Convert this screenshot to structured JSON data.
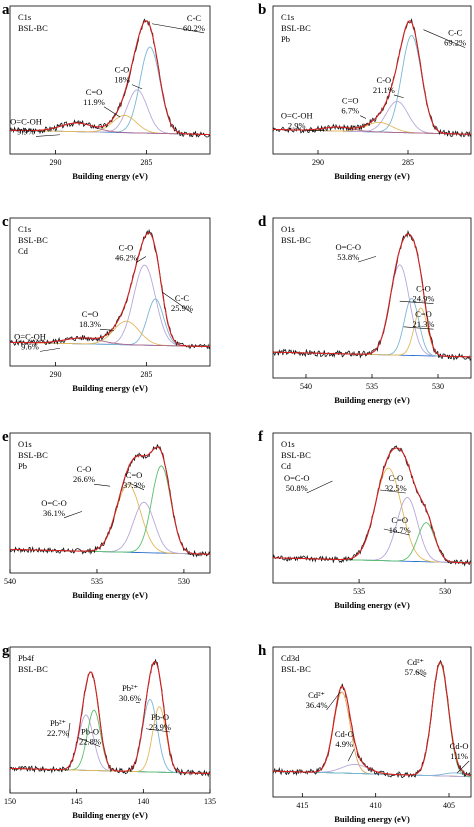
{
  "chart_data": [
    {
      "type": "line",
      "panel_letter": "a",
      "title_lines": [
        "C1s",
        "BSL-BC"
      ],
      "xlabel": "Building energy (eV)",
      "ylabel": "",
      "xlim": [
        292.5,
        281.5
      ],
      "xticks": [
        290,
        285
      ],
      "peaks": [
        {
          "label": "C-C",
          "percent": "60.2%",
          "center": 284.8,
          "amp": 1.0,
          "width": 0.55,
          "color": "#7ab6d6"
        },
        {
          "label": "C-O",
          "percent": "18%",
          "center": 285.5,
          "amp": 0.5,
          "width": 0.55,
          "color": "#b7a8d9"
        },
        {
          "label": "C=O",
          "percent": "11.9%",
          "center": 286.2,
          "amp": 0.2,
          "width": 0.65,
          "color": "#e2b85a"
        },
        {
          "label": "O=C-OH",
          "percent": "9.9%",
          "center": 288.8,
          "amp": 0.1,
          "width": 0.9,
          "color": "#b06a8e"
        }
      ],
      "annotations": [
        {
          "lines": [
            "C-C",
            "60.2%"
          ]
        },
        {
          "lines": [
            "C-O",
            "18%"
          ]
        },
        {
          "lines": [
            "C=O",
            "11.9%"
          ]
        },
        {
          "lines": [
            "O=C-OH",
            "9.9%"
          ]
        }
      ]
    },
    {
      "type": "line",
      "panel_letter": "b",
      "title_lines": [
        "C1s",
        "BSL-BC",
        "Pb"
      ],
      "xlabel": "Building energy (eV)",
      "ylabel": "",
      "xlim": [
        292.5,
        281.5
      ],
      "xticks": [
        290,
        285
      ],
      "peaks": [
        {
          "label": "C-C",
          "percent": "69.2%",
          "center": 284.8,
          "amp": 1.0,
          "width": 0.55,
          "color": "#7ab6d6"
        },
        {
          "label": "C-O",
          "percent": "21.1%",
          "center": 285.6,
          "amp": 0.32,
          "width": 0.6,
          "color": "#b7a8d9"
        },
        {
          "label": "C=O",
          "percent": "6.7%",
          "center": 286.6,
          "amp": 0.1,
          "width": 0.7,
          "color": "#e2b85a"
        },
        {
          "label": "O=C-OH",
          "percent": "2.9%",
          "center": 288.9,
          "amp": 0.04,
          "width": 0.8,
          "color": "#b06a8e"
        }
      ],
      "annotations": [
        {
          "lines": [
            "C-C",
            "69.2%"
          ]
        },
        {
          "lines": [
            "C-O",
            "21.1%"
          ]
        },
        {
          "lines": [
            "C=O",
            "6.7%"
          ]
        },
        {
          "lines": [
            "O=C-OH",
            "2.9%"
          ]
        }
      ]
    },
    {
      "type": "line",
      "panel_letter": "c",
      "title_lines": [
        "C1s",
        "BSL-BC",
        "Cd"
      ],
      "xlabel": "Building energy (eV)",
      "ylabel": "",
      "xlim": [
        292.5,
        281.5
      ],
      "xticks": [
        290,
        285
      ],
      "peaks": [
        {
          "label": "C-O",
          "percent": "46.2%",
          "center": 285.1,
          "amp": 0.95,
          "width": 0.6,
          "color": "#b7a8d9"
        },
        {
          "label": "C-C",
          "percent": "25.9%",
          "center": 284.5,
          "amp": 0.55,
          "width": 0.45,
          "color": "#7ab6d6"
        },
        {
          "label": "C=O",
          "percent": "18.3%",
          "center": 286.1,
          "amp": 0.28,
          "width": 0.7,
          "color": "#e2b85a"
        },
        {
          "label": "O=C-OH",
          "percent": "9.6%",
          "center": 288.5,
          "amp": 0.07,
          "width": 1.0,
          "color": "#b06a8e"
        }
      ],
      "annotations": [
        {
          "lines": [
            "C-O",
            "46.2%"
          ]
        },
        {
          "lines": [
            "C-C",
            "25.9%"
          ]
        },
        {
          "lines": [
            "C=O",
            "18.3%"
          ]
        },
        {
          "lines": [
            "O=C-OH",
            "9.6%"
          ]
        }
      ]
    },
    {
      "type": "line",
      "panel_letter": "d",
      "title_lines": [
        "O1s",
        "BSL-BC"
      ],
      "xlabel": "Building energy (eV)",
      "ylabel": "",
      "xlim": [
        542.5,
        527.5
      ],
      "xticks": [
        540,
        535,
        530
      ],
      "peaks": [
        {
          "label": "O=C-O",
          "percent": "53.8%",
          "center": 532.9,
          "amp": 0.95,
          "width": 0.75,
          "color": "#b7a8d9"
        },
        {
          "label": "C-O",
          "percent": "24.9%",
          "center": 532.0,
          "amp": 0.6,
          "width": 0.55,
          "color": "#7ab6d6"
        },
        {
          "label": "C=O",
          "percent": "21.3%",
          "center": 531.3,
          "amp": 0.5,
          "width": 0.5,
          "color": "#e2b85a"
        }
      ],
      "annotations": [
        {
          "lines": [
            "O=C-O",
            "53.8%"
          ]
        },
        {
          "lines": [
            "C-O",
            "24.9%"
          ]
        },
        {
          "lines": [
            "C=O",
            "21.3%"
          ]
        }
      ]
    },
    {
      "type": "line",
      "panel_letter": "e",
      "title_lines": [
        "O1s",
        "BSL-BC",
        "Pb"
      ],
      "xlabel": "Building energy (eV)",
      "ylabel": "",
      "xlim": [
        540,
        528.5
      ],
      "xticks": [
        540,
        535,
        530
      ],
      "peaks": [
        {
          "label": "O=C-O",
          "percent": "36.1%",
          "center": 533.2,
          "amp": 0.7,
          "width": 0.7,
          "color": "#e2b85a"
        },
        {
          "label": "C-O",
          "percent": "26.6%",
          "center": 532.3,
          "amp": 0.52,
          "width": 0.6,
          "color": "#b7a8d9"
        },
        {
          "label": "C=O",
          "percent": "37.3%",
          "center": 531.3,
          "amp": 0.9,
          "width": 0.55,
          "color": "#5cbf6e"
        }
      ],
      "annotations": [
        {
          "lines": [
            "C-O",
            "26.6%"
          ]
        },
        {
          "lines": [
            "O=C-O",
            "36.1%"
          ]
        },
        {
          "lines": [
            "C=O",
            "37.3%"
          ]
        }
      ]
    },
    {
      "type": "line",
      "panel_letter": "f",
      "title_lines": [
        "O1s",
        "BSL-BC",
        "Cd"
      ],
      "xlabel": "Building energy (eV)",
      "ylabel": "",
      "xlim": [
        540,
        528.5
      ],
      "xticks": [
        535,
        530
      ],
      "peaks": [
        {
          "label": "O=C-O",
          "percent": "50.8%",
          "center": 533.3,
          "amp": 0.9,
          "width": 0.75,
          "color": "#e2b85a"
        },
        {
          "label": "C-O",
          "percent": "32.5%",
          "center": 532.2,
          "amp": 0.62,
          "width": 0.6,
          "color": "#b7a8d9"
        },
        {
          "label": "C=O",
          "percent": "16.7%",
          "center": 531.1,
          "amp": 0.38,
          "width": 0.5,
          "color": "#5cbf6e"
        }
      ],
      "annotations": [
        {
          "lines": [
            "O=C-O",
            "50.8%"
          ]
        },
        {
          "lines": [
            "C-O",
            "32.5%"
          ]
        },
        {
          "lines": [
            "C=O",
            "16.7%"
          ]
        }
      ]
    },
    {
      "type": "line",
      "panel_letter": "g",
      "title_lines": [
        "Pb4f",
        "BSL-BC"
      ],
      "xlabel": "Building energy (eV)",
      "ylabel": "",
      "xlim": [
        150,
        135
      ],
      "xticks": [
        150,
        145,
        140,
        135
      ],
      "peaks": [
        {
          "label": "Pb²⁺",
          "percent": "22.7%",
          "center": 144.3,
          "amp": 0.55,
          "width": 0.55,
          "color": "#b7a8d9"
        },
        {
          "label": "Pb-O",
          "percent": "22.8%",
          "center": 143.7,
          "amp": 0.6,
          "width": 0.5,
          "color": "#5cbf6e"
        },
        {
          "label": "Pb²⁺",
          "percent": "30.6%",
          "center": 139.5,
          "amp": 0.72,
          "width": 0.55,
          "color": "#7ab6d6"
        },
        {
          "label": "Pb-O",
          "percent": "23.9%",
          "center": 138.8,
          "amp": 0.65,
          "width": 0.5,
          "color": "#e2b85a"
        }
      ],
      "annotations": [
        {
          "lines": [
            "Pb²⁺",
            "22.7%"
          ]
        },
        {
          "lines": [
            "Pb-O",
            "22.8%"
          ]
        },
        {
          "lines": [
            "Pb²⁺",
            "30.6%"
          ]
        },
        {
          "lines": [
            "Pb-O",
            "23.9%"
          ]
        }
      ]
    },
    {
      "type": "line",
      "panel_letter": "h",
      "title_lines": [
        "Cd3d",
        "BSL-BC"
      ],
      "xlabel": "Building energy (eV)",
      "ylabel": "",
      "xlim": [
        417,
        403.5
      ],
      "xticks": [
        415,
        410,
        405
      ],
      "peaks": [
        {
          "label": "Cd²⁺",
          "percent": "36.4%",
          "center": 412.3,
          "amp": 0.72,
          "width": 0.55,
          "color": "#e2a257"
        },
        {
          "label": "Cd-O",
          "percent": "4.9%",
          "center": 411.4,
          "amp": 0.08,
          "width": 0.9,
          "color": "#b7a8d9"
        },
        {
          "label": "Cd²⁺",
          "percent": "57.6%",
          "center": 405.6,
          "amp": 1.0,
          "width": 0.55,
          "color": "#5cbf6e"
        },
        {
          "label": "Cd-O",
          "percent": "1.1%",
          "center": 404.6,
          "amp": 0.03,
          "width": 0.7,
          "color": "#7ab6d6"
        }
      ],
      "annotations": [
        {
          "lines": [
            "Cd²⁺",
            "36.4%"
          ]
        },
        {
          "lines": [
            "Cd-O",
            "4.9%"
          ]
        },
        {
          "lines": [
            "Cd²⁺",
            "57.6%"
          ]
        },
        {
          "lines": [
            "Cd-O",
            "1.1%"
          ]
        }
      ]
    }
  ]
}
